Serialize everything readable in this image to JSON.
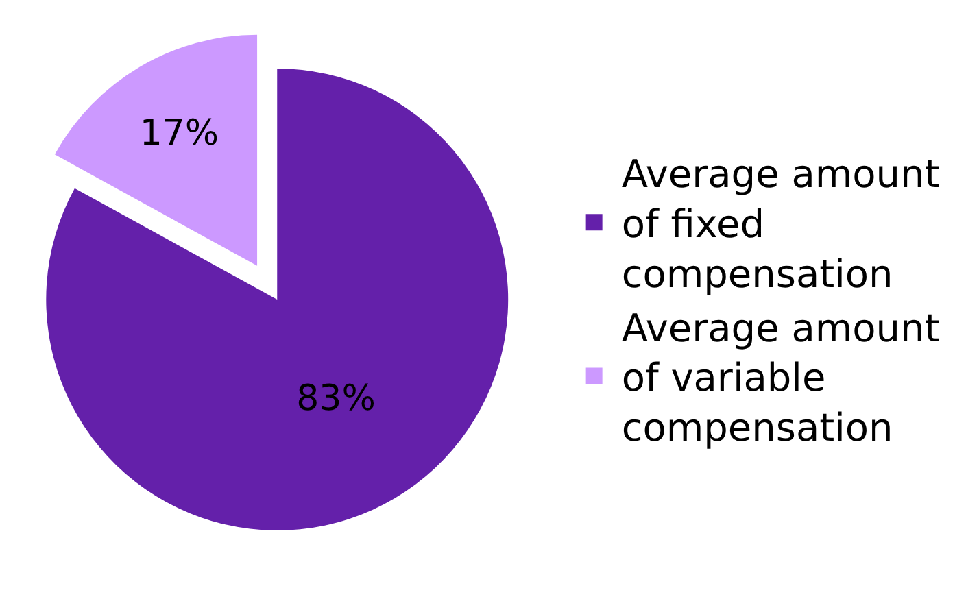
{
  "chart_data": {
    "type": "pie",
    "categories": [
      "Average amount of fixed compensation",
      "Average amount of variable compensation"
    ],
    "values": [
      83,
      17
    ],
    "value_labels": [
      "83%",
      "17%"
    ],
    "colors": [
      "#6420aa",
      "#cc99ff"
    ],
    "legend": "right"
  }
}
